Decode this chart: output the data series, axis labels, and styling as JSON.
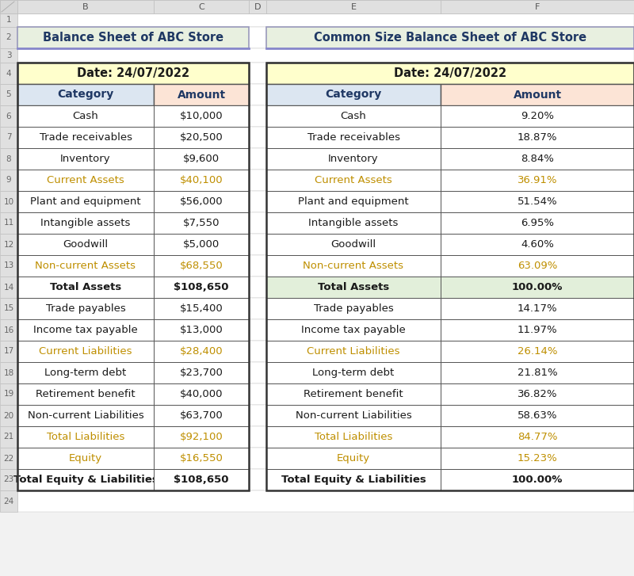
{
  "title1": "Balance Sheet of ABC Store",
  "title2": "Common Size Balance Sheet of ABC Store",
  "date": "Date: 24/07/2022",
  "left_rows": [
    [
      "Cash",
      "$10,000"
    ],
    [
      "Trade receivables",
      "$20,500"
    ],
    [
      "Inventory",
      "$9,600"
    ],
    [
      "Current Assets",
      "$40,100"
    ],
    [
      "Plant and equipment",
      "$56,000"
    ],
    [
      "Intangible assets",
      "$7,550"
    ],
    [
      "Goodwill",
      "$5,000"
    ],
    [
      "Non-current Assets",
      "$68,550"
    ],
    [
      "Total Assets",
      "$108,650"
    ],
    [
      "Trade payables",
      "$15,400"
    ],
    [
      "Income tax payable",
      "$13,000"
    ],
    [
      "Current Liabilities",
      "$28,400"
    ],
    [
      "Long-term debt",
      "$23,700"
    ],
    [
      "Retirement benefit",
      "$40,000"
    ],
    [
      "Non-current Liabilities",
      "$63,700"
    ],
    [
      "Total Liabilities",
      "$92,100"
    ],
    [
      "Equity",
      "$16,550"
    ],
    [
      "Total Equity & Liabilities",
      "$108,650"
    ]
  ],
  "right_rows": [
    [
      "Cash",
      "9.20%"
    ],
    [
      "Trade receivables",
      "18.87%"
    ],
    [
      "Inventory",
      "8.84%"
    ],
    [
      "Current Assets",
      "36.91%"
    ],
    [
      "Plant and equipment",
      "51.54%"
    ],
    [
      "Intangible assets",
      "6.95%"
    ],
    [
      "Goodwill",
      "4.60%"
    ],
    [
      "Non-current Assets",
      "63.09%"
    ],
    [
      "Total Assets",
      "100.00%"
    ],
    [
      "Trade payables",
      "14.17%"
    ],
    [
      "Income tax payable",
      "11.97%"
    ],
    [
      "Current Liabilities",
      "26.14%"
    ],
    [
      "Long-term debt",
      "21.81%"
    ],
    [
      "Retirement benefit",
      "36.82%"
    ],
    [
      "Non-current Liabilities",
      "58.63%"
    ],
    [
      "Total Liabilities",
      "84.77%"
    ],
    [
      "Equity",
      "15.23%"
    ],
    [
      "Total Equity & Liabilities",
      "100.00%"
    ]
  ],
  "orange_text_indices": [
    3,
    7,
    11,
    15,
    16
  ],
  "bold_indices": [
    8,
    17
  ],
  "total_assets_idx": 8,
  "title_bg": "#e8f0e0",
  "date_bg": "#ffffcc",
  "header_cat_bg": "#dce6f1",
  "header_amt_bg": "#fce4d6",
  "total_assets_bg": "#e2efda",
  "excel_bg": "#f2f2f2",
  "row_num_bg": "#e0e0e0",
  "col_hdr_bg": "#e0e0e0",
  "orange_color": "#bf8f00",
  "text_dark": "#1a1a2e",
  "title_color": "#1f3864",
  "grid_color": "#bfbfbf",
  "border_color": "#000000"
}
